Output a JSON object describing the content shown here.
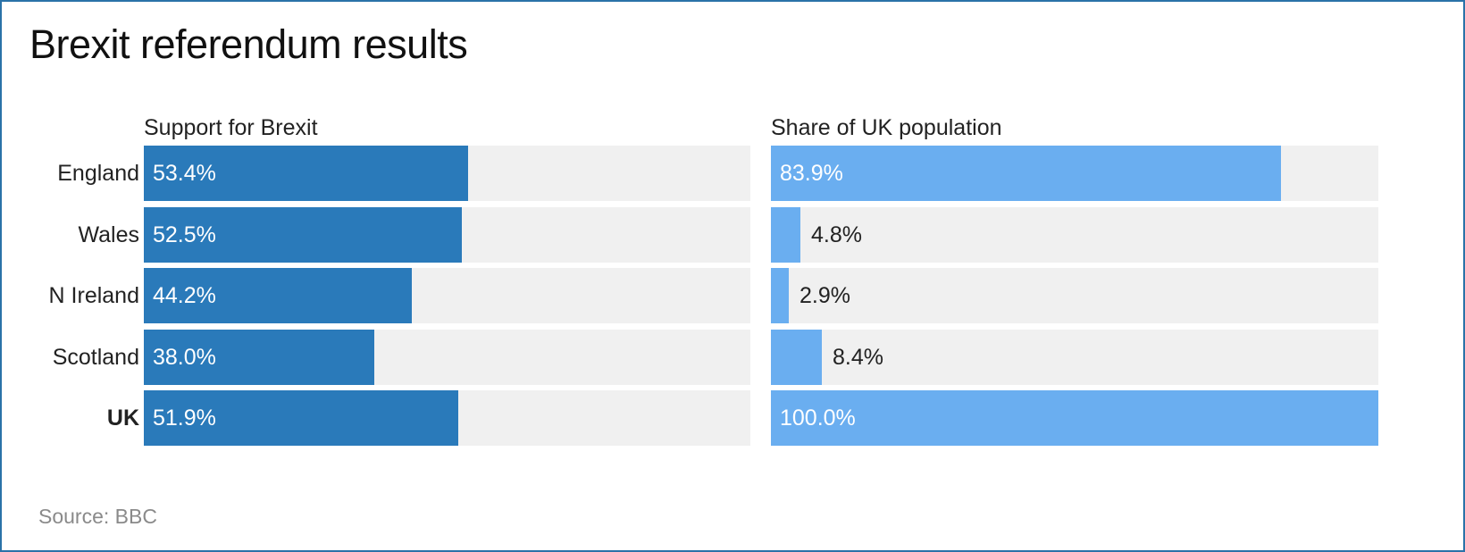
{
  "chart_data": {
    "type": "bar",
    "title": "Brexit referendum results",
    "categories": [
      "England",
      "Wales",
      "N Ireland",
      "Scotland",
      "UK"
    ],
    "bold_categories": [
      "UK"
    ],
    "panels": [
      {
        "title": "Support for Brexit",
        "values": [
          53.4,
          52.5,
          44.2,
          38.0,
          51.9
        ],
        "labels": [
          "53.4%",
          "52.5%",
          "44.2%",
          "38.0%",
          "51.9%"
        ],
        "xlim": [
          0,
          100
        ],
        "color": "#2a7aba"
      },
      {
        "title": "Share of UK population",
        "values": [
          83.9,
          4.8,
          2.9,
          8.4,
          100.0
        ],
        "labels": [
          "83.9%",
          "4.8%",
          "2.9%",
          "8.4%",
          "100.0%"
        ],
        "xlim": [
          0,
          100
        ],
        "color": "#6aaef0"
      }
    ],
    "track_color": "#f0f0f0",
    "grid": false,
    "legend": "none"
  },
  "source": "Source: BBC"
}
